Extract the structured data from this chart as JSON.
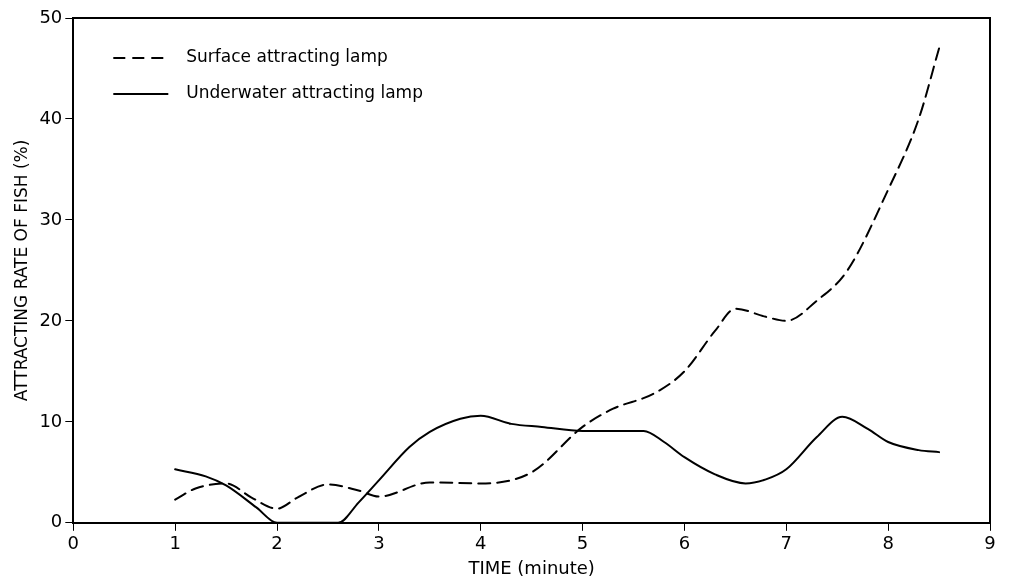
{
  "chart_data": {
    "type": "line",
    "xlabel": "TIME (minute)",
    "ylabel": "ATTRACTING RATE OF FISH (%)",
    "xlim": [
      0,
      9
    ],
    "xticks": [
      0,
      1,
      2,
      3,
      4,
      5,
      6,
      7,
      8,
      9
    ],
    "ylim": [
      0,
      50
    ],
    "yticks": [
      0,
      10,
      20,
      30,
      40,
      50
    ],
    "grid": false,
    "legend": "top left",
    "marker": "none",
    "series": [
      {
        "name": "Surface attracting lamp",
        "color": "#000000",
        "line_style": "dashed",
        "x": [
          1,
          1.2,
          1.5,
          1.75,
          2,
          2.2,
          2.5,
          2.8,
          3,
          3.5,
          4,
          4.5,
          5,
          5.3,
          5.7,
          6,
          6.3,
          6.5,
          6.8,
          7,
          7.3,
          7.6,
          8,
          8.3,
          8.5
        ],
        "values": [
          2.3,
          3.4,
          3.9,
          2.5,
          1.4,
          2.5,
          3.8,
          3.2,
          2.6,
          4.0,
          3.9,
          5.0,
          9.5,
          11.3,
          12.8,
          15,
          19,
          21.2,
          20.4,
          20,
          22,
          25,
          33,
          40,
          47
        ]
      },
      {
        "name": "Underwater attracting lamp",
        "color": "#000000",
        "line_style": "solid",
        "x": [
          1,
          1.3,
          1.5,
          1.8,
          2,
          2.6,
          2.8,
          3,
          3.3,
          3.5,
          3.8,
          4,
          4.3,
          4.6,
          5,
          5.3,
          5.6,
          5.8,
          6,
          6.3,
          6.6,
          6.8,
          7,
          7.3,
          7.55,
          7.8,
          8,
          8.3,
          8.5
        ],
        "values": [
          5.3,
          4.6,
          3.7,
          1.5,
          0,
          0,
          2,
          4.2,
          7.5,
          9.0,
          10.3,
          10.6,
          9.8,
          9.5,
          9.1,
          9.1,
          9.1,
          8,
          6.5,
          4.8,
          3.9,
          4.3,
          5.3,
          8.5,
          10.5,
          9.3,
          8,
          7.2,
          7.0
        ]
      }
    ]
  }
}
